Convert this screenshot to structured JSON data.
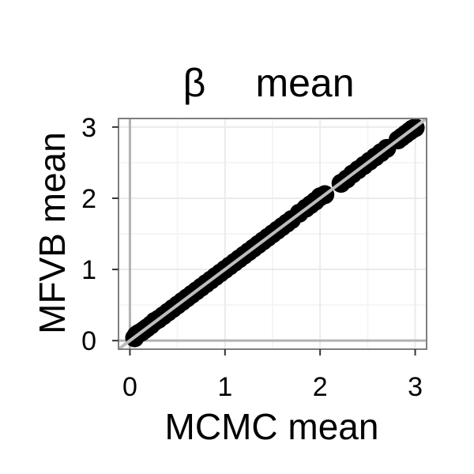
{
  "chart_data": {
    "type": "scatter",
    "title_symbol": "β",
    "title_word": "mean",
    "xlabel": "MCMC mean",
    "ylabel": "MFVB mean",
    "xlim": [
      -0.12,
      3.12
    ],
    "ylim": [
      -0.12,
      3.12
    ],
    "x_ticks": [
      0,
      1,
      2,
      3
    ],
    "y_ticks": [
      0,
      1,
      2,
      3
    ],
    "x_tick_labels": [
      "0",
      "1",
      "2",
      "3"
    ],
    "y_tick_labels": [
      "0",
      "1",
      "2",
      "3"
    ],
    "grid": true,
    "reference_line": {
      "intercept": 0,
      "slope": 1,
      "color": "#bdbdbd"
    },
    "colors": {
      "points": "#000000",
      "panel_background": "#ffffff",
      "panel_border": "#7f7f7f",
      "grid_major": "#ebebeb",
      "grid_minor": "#f5f5f5",
      "axis_line": "#b3b3b3"
    },
    "points": [
      [
        0.05,
        0.04
      ],
      [
        0.07,
        0.08
      ],
      [
        0.09,
        0.1
      ],
      [
        0.12,
        0.12
      ],
      [
        0.15,
        0.15
      ],
      [
        0.18,
        0.18
      ],
      [
        0.22,
        0.22
      ],
      [
        0.26,
        0.27
      ],
      [
        0.3,
        0.3
      ],
      [
        0.35,
        0.35
      ],
      [
        0.4,
        0.4
      ],
      [
        0.45,
        0.45
      ],
      [
        0.5,
        0.5
      ],
      [
        0.55,
        0.55
      ],
      [
        0.6,
        0.6
      ],
      [
        0.65,
        0.65
      ],
      [
        0.7,
        0.7
      ],
      [
        0.75,
        0.75
      ],
      [
        0.8,
        0.8
      ],
      [
        0.85,
        0.85
      ],
      [
        0.9,
        0.9
      ],
      [
        0.95,
        0.95
      ],
      [
        1.0,
        1.0
      ],
      [
        1.05,
        1.05
      ],
      [
        1.1,
        1.1
      ],
      [
        1.15,
        1.15
      ],
      [
        1.2,
        1.2
      ],
      [
        1.25,
        1.25
      ],
      [
        1.3,
        1.3
      ],
      [
        1.35,
        1.35
      ],
      [
        1.4,
        1.4
      ],
      [
        1.45,
        1.45
      ],
      [
        1.5,
        1.5
      ],
      [
        1.55,
        1.55
      ],
      [
        1.6,
        1.6
      ],
      [
        1.65,
        1.65
      ],
      [
        1.7,
        1.7
      ],
      [
        1.78,
        1.79
      ],
      [
        1.85,
        1.86
      ],
      [
        1.9,
        1.91
      ],
      [
        1.95,
        1.96
      ],
      [
        2.0,
        2.02
      ],
      [
        2.05,
        2.05
      ],
      [
        2.22,
        2.21
      ],
      [
        2.28,
        2.27
      ],
      [
        2.34,
        2.34
      ],
      [
        2.4,
        2.4
      ],
      [
        2.46,
        2.46
      ],
      [
        2.52,
        2.52
      ],
      [
        2.58,
        2.58
      ],
      [
        2.64,
        2.64
      ],
      [
        2.7,
        2.7
      ],
      [
        2.82,
        2.82
      ],
      [
        2.86,
        2.86
      ],
      [
        2.9,
        2.9
      ],
      [
        2.94,
        2.94
      ],
      [
        2.97,
        2.97
      ],
      [
        3.0,
        2.99
      ]
    ]
  }
}
